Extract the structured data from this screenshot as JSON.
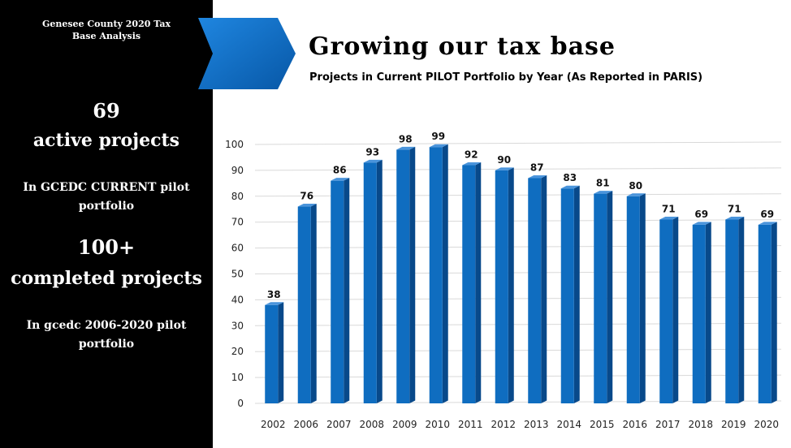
{
  "sidebar": {
    "header_line1": "Genesee County 2020 Tax",
    "header_line2": "Base Analysis",
    "active_count": "69",
    "active_label": "active projects",
    "active_desc": "In GCEDC CURRENT pilot portfolio",
    "completed_count": "100+",
    "completed_label": "completed projects",
    "completed_desc": "In gcedc 2006-2020 pilot portfolio"
  },
  "header": {
    "title": "Growing our tax base",
    "subtitle": "Projects in Current PILOT Portfolio by Year (As Reported in PARIS)"
  },
  "colors": {
    "sidebar_bg": "#000000",
    "accent_blue": "#0b6fc4",
    "bar_front": "#0f6dc0",
    "bar_side": "#08498a",
    "bar_top": "#4a94db"
  },
  "chart_data": {
    "type": "bar",
    "categories": [
      "2002",
      "2006",
      "2007",
      "2008",
      "2009",
      "2010",
      "2011",
      "2012",
      "2013",
      "2014",
      "2015",
      "2016",
      "2017",
      "2018",
      "2019",
      "2020"
    ],
    "values": [
      38,
      76,
      86,
      93,
      98,
      99,
      92,
      90,
      87,
      83,
      81,
      80,
      71,
      69,
      71,
      69
    ],
    "ylim": [
      0,
      100
    ],
    "yticks": [
      0,
      10,
      20,
      30,
      40,
      50,
      60,
      70,
      80,
      90,
      100
    ],
    "grid": true,
    "data_labels": true,
    "legend": "none",
    "style": "3d"
  }
}
